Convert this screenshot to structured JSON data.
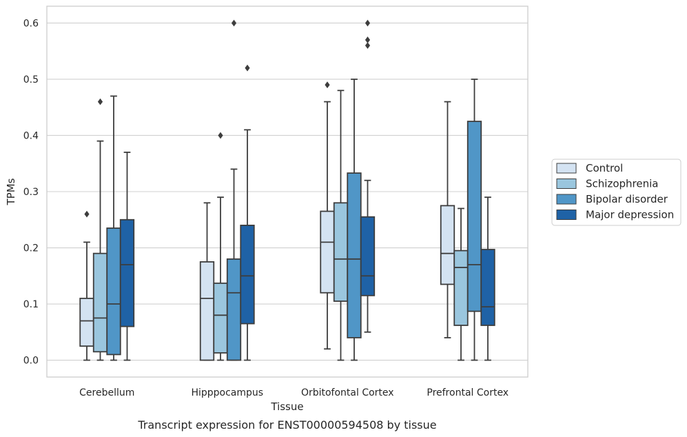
{
  "chart_data": {
    "type": "boxplot",
    "caption": "Transcript expression for ENST00000594508 by tissue",
    "xlabel": "Tissue",
    "ylabel": "TPMs",
    "ylim": [
      -0.03,
      0.63
    ],
    "yticks": [
      "0.0",
      "0.1",
      "0.2",
      "0.3",
      "0.4",
      "0.5",
      "0.6"
    ],
    "categories": [
      "Cerebellum",
      "Hipppocampus",
      "Orbitofontal Cortex",
      "Prefrontal Cortex"
    ],
    "grid": true,
    "legend_position": "right",
    "series": [
      {
        "name": "Control",
        "color": "#d4e3f2",
        "boxes": [
          {
            "whislo": 0.0,
            "q1": 0.025,
            "med": 0.07,
            "q3": 0.11,
            "whishi": 0.21,
            "fliers": [
              0.26
            ]
          },
          {
            "whislo": 0.0,
            "q1": 0.0,
            "med": 0.11,
            "q3": 0.175,
            "whishi": 0.28,
            "fliers": []
          },
          {
            "whislo": 0.02,
            "q1": 0.12,
            "med": 0.21,
            "q3": 0.265,
            "whishi": 0.46,
            "fliers": [
              0.49
            ]
          },
          {
            "whislo": 0.04,
            "q1": 0.135,
            "med": 0.19,
            "q3": 0.275,
            "whishi": 0.46,
            "fliers": []
          }
        ]
      },
      {
        "name": "Schizophrenia",
        "color": "#9ac6de",
        "boxes": [
          {
            "whislo": 0.0,
            "q1": 0.015,
            "med": 0.075,
            "q3": 0.19,
            "whishi": 0.39,
            "fliers": [
              0.46
            ]
          },
          {
            "whislo": 0.0,
            "q1": 0.013,
            "med": 0.08,
            "q3": 0.137,
            "whishi": 0.29,
            "fliers": [
              0.4
            ]
          },
          {
            "whislo": 0.0,
            "q1": 0.105,
            "med": 0.18,
            "q3": 0.28,
            "whishi": 0.48,
            "fliers": []
          },
          {
            "whislo": 0.0,
            "q1": 0.062,
            "med": 0.165,
            "q3": 0.195,
            "whishi": 0.27,
            "fliers": []
          }
        ]
      },
      {
        "name": "Bipolar disorder",
        "color": "#5096c7",
        "boxes": [
          {
            "whislo": 0.0,
            "q1": 0.01,
            "med": 0.1,
            "q3": 0.235,
            "whishi": 0.47,
            "fliers": []
          },
          {
            "whislo": 0.0,
            "q1": 0.0,
            "med": 0.12,
            "q3": 0.18,
            "whishi": 0.34,
            "fliers": [
              0.6
            ]
          },
          {
            "whislo": 0.0,
            "q1": 0.04,
            "med": 0.18,
            "q3": 0.333,
            "whishi": 0.5,
            "fliers": []
          },
          {
            "whislo": 0.0,
            "q1": 0.087,
            "med": 0.17,
            "q3": 0.425,
            "whishi": 0.5,
            "fliers": []
          }
        ]
      },
      {
        "name": "Major depression",
        "color": "#1f62a6",
        "boxes": [
          {
            "whislo": 0.0,
            "q1": 0.06,
            "med": 0.17,
            "q3": 0.25,
            "whishi": 0.37,
            "fliers": []
          },
          {
            "whislo": 0.0,
            "q1": 0.065,
            "med": 0.15,
            "q3": 0.24,
            "whishi": 0.41,
            "fliers": [
              0.52
            ]
          },
          {
            "whislo": 0.05,
            "q1": 0.115,
            "med": 0.15,
            "q3": 0.255,
            "whishi": 0.32,
            "fliers": [
              0.56,
              0.57,
              0.6
            ]
          },
          {
            "whislo": 0.0,
            "q1": 0.062,
            "med": 0.095,
            "q3": 0.197,
            "whishi": 0.29,
            "fliers": []
          }
        ]
      }
    ]
  }
}
